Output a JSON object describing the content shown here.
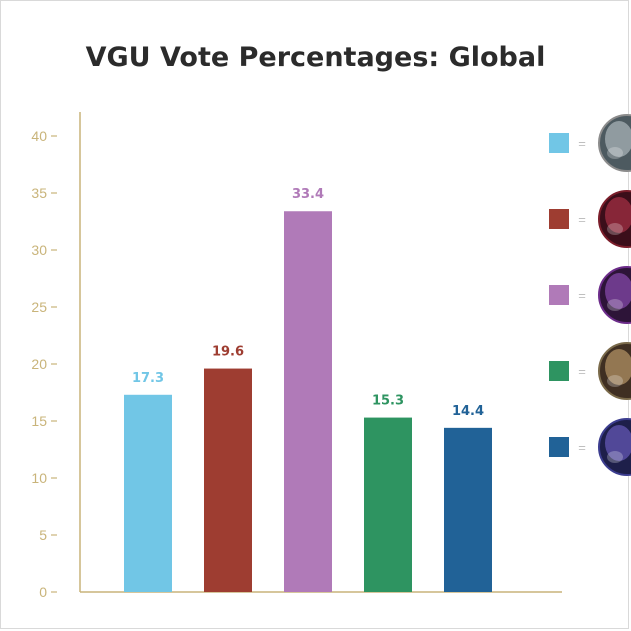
{
  "chart_data": {
    "type": "bar",
    "title": "VGU Vote Percentages: Global",
    "categories": [
      "",
      "",
      "",
      "",
      ""
    ],
    "values": [
      17.3,
      19.6,
      33.4,
      15.3,
      14.4
    ],
    "value_labels": [
      "17.3",
      "19.6",
      "33.4",
      "15.3",
      "14.4"
    ],
    "colors": [
      "#71c6e6",
      "#9e3d31",
      "#b07ab8",
      "#2e9461",
      "#216297"
    ],
    "ylim": [
      0,
      40
    ],
    "yticks": [
      "0",
      "5",
      "10",
      "15",
      "20",
      "25",
      "30",
      "35",
      "40"
    ],
    "ytick_values": [
      0,
      5,
      10,
      15,
      20,
      25,
      30,
      35,
      40
    ],
    "axis_color": "#c9b47a",
    "grid": false,
    "legend": {
      "placement": "right",
      "entries": [
        {
          "symbol": "=",
          "color": "#71c6e6",
          "icon": "champion-portrait-icon"
        },
        {
          "symbol": "=",
          "color": "#9e3d31",
          "icon": "champion-portrait-icon"
        },
        {
          "symbol": "=",
          "color": "#b07ab8",
          "icon": "champion-portrait-icon"
        },
        {
          "symbol": "=",
          "color": "#2e9461",
          "icon": "champion-portrait-icon"
        },
        {
          "symbol": "=",
          "color": "#216297",
          "icon": "champion-portrait-icon"
        }
      ]
    }
  }
}
